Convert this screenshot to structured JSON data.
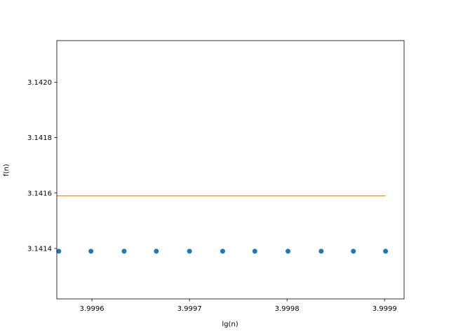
{
  "chart_data": {
    "type": "scatter",
    "xlabel": "lg(n)",
    "ylabel": "f(n)",
    "xlim": [
      3.999564,
      3.99992
    ],
    "ylim": [
      3.141218,
      3.14215
    ],
    "xticks": [
      3.9996,
      3.9997,
      3.9998,
      3.9999
    ],
    "yticks": [
      3.1414,
      3.1416,
      3.1418,
      {
        "value": 3.142,
        "label": "3.1420"
      }
    ],
    "series": [
      {
        "type": "scatter",
        "color": "#1f77b4",
        "x": [
          3.999566,
          3.999599,
          3.999633,
          3.999666,
          3.9997,
          3.999734,
          3.999767,
          3.999801,
          3.999835,
          3.999868,
          3.999901
        ],
        "values": [
          3.14139,
          3.14139,
          3.14139,
          3.14139,
          3.14139,
          3.14139,
          3.14139,
          3.14139,
          3.14139,
          3.14139,
          3.14139
        ]
      },
      {
        "type": "line",
        "color": "#ffa500",
        "x": [
          3.999564,
          3.999901
        ],
        "values": [
          3.14159,
          3.14159
        ]
      }
    ]
  }
}
